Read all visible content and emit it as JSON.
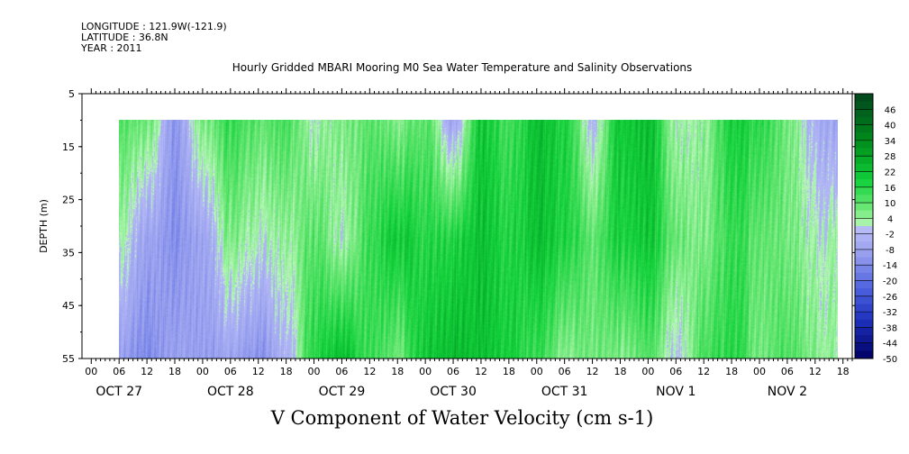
{
  "meta": {
    "longitude": "LONGITUDE : 121.9W(-121.9)",
    "latitude": "LATITUDE : 36.8N",
    "year": "YEAR : 2011"
  },
  "title": "Hourly Gridded MBARI Mooring M0 Sea Water Temperature and Salinity Observations",
  "chart_data": {
    "type": "heatmap",
    "title": "Hourly Gridded MBARI Mooring M0 Sea Water Temperature and Salinity Observations",
    "xlabel": "V Component of Water Velocity (cm s-1)",
    "ylabel": "DEPTH (m)",
    "y_ticks": [
      "5",
      "15",
      "25",
      "35",
      "45",
      "55"
    ],
    "y_range": [
      5,
      55
    ],
    "y_inverted": true,
    "data_depth_range": [
      10,
      55
    ],
    "x_hour_ticks": [
      "00",
      "06",
      "12",
      "18",
      "00",
      "06",
      "12",
      "18",
      "00",
      "06",
      "12",
      "18",
      "00",
      "06",
      "12",
      "18",
      "00",
      "06",
      "12",
      "18",
      "00",
      "06",
      "12",
      "18",
      "00",
      "06",
      "12",
      "18"
    ],
    "x_day_labels": [
      "OCT 27",
      "OCT 28",
      "OCT 29",
      "OCT 30",
      "OCT 31",
      "NOV  1",
      "NOV  2"
    ],
    "x_range_hours": [
      -2,
      164
    ],
    "data_start_hour": 6,
    "colorbar_labels": [
      "46",
      "40",
      "34",
      "28",
      "22",
      "16",
      "10",
      "4",
      "-2",
      "-8",
      "-14",
      "-20",
      "-26",
      "-32",
      "-38",
      "-44",
      "-50"
    ],
    "colorbar_levels": [
      52,
      49,
      46,
      43,
      40,
      37,
      34,
      31,
      28,
      25,
      22,
      19,
      16,
      13,
      10,
      7,
      4,
      1,
      -2,
      -5,
      -8,
      -11,
      -14,
      -17,
      -20,
      -23,
      -26,
      -29,
      -32,
      -35,
      -38,
      -41,
      -44,
      -47,
      -50
    ],
    "colors": {
      "strong_positive": "#00441b",
      "positive": "#00c830",
      "weak_positive": "#96ec96",
      "weak_negative": "#aab0f4",
      "negative": "#2a3ad6",
      "strong_negative": "#000066"
    },
    "profile_hours": [
      6,
      12,
      18,
      24,
      30,
      36,
      42,
      48,
      54,
      60,
      66,
      72,
      78,
      84,
      90,
      96,
      102,
      108,
      114,
      120,
      126,
      132,
      138,
      144,
      150,
      156,
      162
    ],
    "surface_values": [
      10,
      8,
      -10,
      6,
      14,
      10,
      12,
      2,
      6,
      10,
      6,
      10,
      -6,
      20,
      12,
      22,
      18,
      -2,
      20,
      22,
      2,
      4,
      18,
      16,
      8,
      -4,
      -8
    ],
    "mid_values": [
      2,
      -8,
      -12,
      -8,
      6,
      2,
      4,
      10,
      2,
      14,
      20,
      16,
      18,
      22,
      16,
      22,
      18,
      10,
      18,
      20,
      8,
      6,
      14,
      10,
      8,
      2,
      4
    ],
    "bottom_values": [
      -10,
      -14,
      -8,
      -10,
      -8,
      -12,
      -4,
      16,
      22,
      14,
      8,
      20,
      24,
      22,
      18,
      14,
      6,
      8,
      6,
      10,
      -2,
      12,
      16,
      8,
      12,
      6,
      4
    ]
  }
}
